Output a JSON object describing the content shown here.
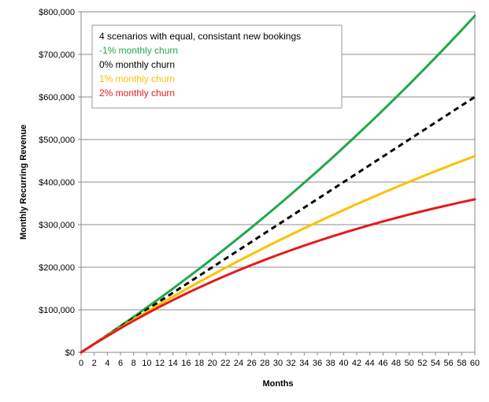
{
  "chart_data": {
    "type": "line",
    "title": "",
    "xlabel": "Months",
    "ylabel": "Monthly Recurring  Revenue",
    "xlim": [
      0,
      60
    ],
    "ylim": [
      0,
      800000
    ],
    "grid": true,
    "legend_position": "top-left",
    "legend_title": "4 scenarios with equal, consistant new bookings",
    "x_ticks": [
      0,
      2,
      4,
      6,
      8,
      10,
      12,
      14,
      16,
      18,
      20,
      22,
      24,
      26,
      28,
      30,
      32,
      34,
      36,
      38,
      40,
      42,
      44,
      46,
      48,
      50,
      52,
      54,
      56,
      58,
      60
    ],
    "x_tick_labels": [
      "0",
      "2",
      "4",
      "6",
      "8",
      "10",
      "12",
      "14",
      "16",
      "18",
      "20",
      "22",
      "24",
      "26",
      "28",
      "30",
      "32",
      "34",
      "36",
      "38",
      "40",
      "42",
      "44",
      "46",
      "48",
      "50",
      "52",
      "54",
      "56",
      "58",
      "60"
    ],
    "y_ticks": [
      0,
      100000,
      200000,
      300000,
      400000,
      500000,
      600000,
      700000,
      800000
    ],
    "y_tick_labels": [
      "$0",
      "$100,000",
      "$200,000",
      "$300,000",
      "$400,000",
      "$500,000",
      "$600,000",
      "$700,000",
      "$800,000"
    ],
    "series": [
      {
        "name": "-1% monthly churn",
        "color": "#22a84a",
        "dashed": false,
        "x": [
          0,
          2,
          4,
          6,
          8,
          10,
          12,
          14,
          16,
          18,
          20,
          22,
          24,
          26,
          28,
          30,
          32,
          34,
          36,
          38,
          40,
          42,
          44,
          46,
          48,
          50,
          52,
          54,
          56,
          58,
          60
        ],
        "values": [
          0,
          20200,
          40800,
          61900,
          83300,
          105100,
          127300,
          149900,
          172900,
          196200,
          220000,
          244200,
          268800,
          293800,
          319300,
          345200,
          371500,
          398300,
          425600,
          453300,
          481500,
          510200,
          539300,
          568900,
          599000,
          629600,
          660700,
          692400,
          724600,
          757300,
          790600
        ]
      },
      {
        "name": "0% monthly churn",
        "color": "#000000",
        "dashed": true,
        "x": [
          0,
          2,
          4,
          6,
          8,
          10,
          12,
          14,
          16,
          18,
          20,
          22,
          24,
          26,
          28,
          30,
          32,
          34,
          36,
          38,
          40,
          42,
          44,
          46,
          48,
          50,
          52,
          54,
          56,
          58,
          60
        ],
        "values": [
          0,
          20000,
          40000,
          60000,
          80000,
          100000,
          120000,
          140000,
          160000,
          180000,
          200000,
          220000,
          240000,
          260000,
          280000,
          300000,
          320000,
          340000,
          360000,
          380000,
          400000,
          420000,
          440000,
          460000,
          480000,
          500000,
          520000,
          540000,
          560000,
          580000,
          600000
        ]
      },
      {
        "name": "1% monthly churn",
        "color": "#ffc000",
        "dashed": false,
        "x": [
          0,
          2,
          4,
          6,
          8,
          10,
          12,
          14,
          16,
          18,
          20,
          22,
          24,
          26,
          28,
          30,
          32,
          34,
          36,
          38,
          40,
          42,
          44,
          46,
          48,
          50,
          52,
          54,
          56,
          58,
          60
        ],
        "values": [
          0,
          19800,
          39200,
          58200,
          76800,
          95200,
          113200,
          130900,
          148300,
          165300,
          182100,
          198600,
          214800,
          230700,
          246300,
          261600,
          276700,
          291500,
          306000,
          320300,
          334300,
          348100,
          361600,
          374800,
          387900,
          400600,
          413200,
          425500,
          437600,
          449500,
          461100
        ]
      },
      {
        "name": "2% monthly churn",
        "color": "#e41a1c",
        "dashed": false,
        "x": [
          0,
          2,
          4,
          6,
          8,
          10,
          12,
          14,
          16,
          18,
          20,
          22,
          24,
          26,
          28,
          30,
          32,
          34,
          36,
          38,
          40,
          42,
          44,
          46,
          48,
          50,
          52,
          54,
          56,
          58,
          60
        ],
        "values": [
          0,
          19600,
          38400,
          56600,
          74100,
          91000,
          107200,
          122800,
          137900,
          152400,
          166400,
          179800,
          192800,
          205300,
          217300,
          228900,
          240000,
          250800,
          261200,
          271100,
          280700,
          290000,
          298900,
          307500,
          315800,
          323800,
          331500,
          338900,
          346000,
          352900,
          359500
        ]
      }
    ]
  }
}
